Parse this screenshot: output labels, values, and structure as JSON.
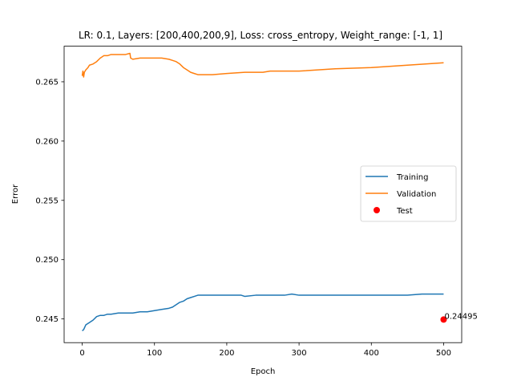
{
  "chart_data": {
    "type": "line",
    "title": "LR: 0.1, Layers: [200,400,200,9], Loss: cross_entropy, Weight_range: [-1, 1]",
    "xlabel": "Epoch",
    "ylabel": "Error",
    "xlim": [
      -25,
      525
    ],
    "ylim": [
      0.243,
      0.268
    ],
    "xticks": [
      "0",
      "100",
      "200",
      "300",
      "400",
      "500"
    ],
    "yticks": [
      "0.245",
      "0.250",
      "0.255",
      "0.260",
      "0.265"
    ],
    "grid": false,
    "legend_position": "center-right",
    "series": [
      {
        "name": "Training",
        "color": "#1f77b4",
        "x": [
          0,
          2,
          5,
          10,
          15,
          20,
          25,
          30,
          35,
          40,
          50,
          60,
          65,
          70,
          80,
          90,
          100,
          110,
          120,
          125,
          130,
          135,
          140,
          145,
          150,
          155,
          160,
          170,
          180,
          200,
          210,
          220,
          225,
          240,
          260,
          280,
          290,
          300,
          350,
          400,
          450,
          470,
          480,
          490,
          500
        ],
        "y": [
          0.244,
          0.2441,
          0.2445,
          0.2447,
          0.2449,
          0.2452,
          0.2453,
          0.2453,
          0.2454,
          0.2454,
          0.2455,
          0.2455,
          0.2455,
          0.2455,
          0.2456,
          0.2456,
          0.2457,
          0.2458,
          0.2459,
          0.246,
          0.2462,
          0.2464,
          0.2465,
          0.2467,
          0.2468,
          0.2469,
          0.247,
          0.247,
          0.247,
          0.247,
          0.247,
          0.247,
          0.2469,
          0.247,
          0.247,
          0.247,
          0.2471,
          0.247,
          0.247,
          0.247,
          0.247,
          0.2471,
          0.2471,
          0.2471,
          0.2471
        ]
      },
      {
        "name": "Validation",
        "color": "#ff7f0e",
        "x": [
          0,
          1,
          2,
          3,
          5,
          8,
          10,
          15,
          20,
          25,
          30,
          35,
          40,
          50,
          60,
          66,
          67,
          70,
          80,
          90,
          100,
          110,
          120,
          125,
          130,
          135,
          140,
          145,
          150,
          155,
          160,
          170,
          180,
          200,
          225,
          245,
          250,
          260,
          300,
          350,
          400,
          450,
          500
        ],
        "y": [
          0.2655,
          0.2659,
          0.2654,
          0.2658,
          0.266,
          0.2662,
          0.2664,
          0.2665,
          0.2667,
          0.267,
          0.2672,
          0.2672,
          0.2673,
          0.2673,
          0.2673,
          0.2674,
          0.267,
          0.2669,
          0.267,
          0.267,
          0.267,
          0.267,
          0.2669,
          0.2668,
          0.2667,
          0.2665,
          0.2662,
          0.266,
          0.2658,
          0.2657,
          0.2656,
          0.2656,
          0.2656,
          0.2657,
          0.2658,
          0.2658,
          0.2658,
          0.2659,
          0.2659,
          0.2661,
          0.2662,
          0.2664,
          0.2666
        ]
      }
    ],
    "scatter": {
      "name": "Test",
      "color": "#ff0000",
      "x": 500,
      "y": 0.24495,
      "label": "0.24495"
    }
  }
}
